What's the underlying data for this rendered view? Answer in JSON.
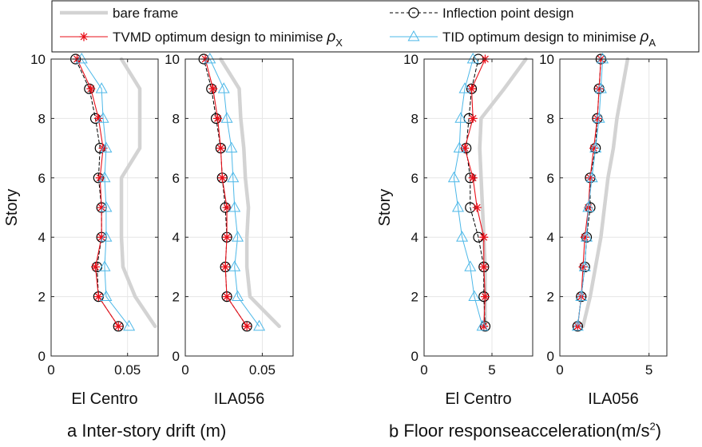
{
  "legend": {
    "items": [
      {
        "key": "bare",
        "label": "bare frame"
      },
      {
        "key": "inflection",
        "label": "Inflection point design"
      },
      {
        "key": "tvmd",
        "label": "TVMD optimum design to minimise ",
        "sym": "ρ",
        "sub": "X"
      },
      {
        "key": "tid",
        "label": "TID optimum design to minimise ",
        "sym": "ρ",
        "sub": "A"
      }
    ]
  },
  "colors": {
    "bare": "#d3d3d3",
    "inflection": "#000000",
    "tvmd": "#e8101a",
    "tid": "#4db8e8",
    "grid": "#e6e6e6",
    "axis": "#262626"
  },
  "captions": {
    "a_letter": "a",
    "a_text": "Inter-story drift (m)",
    "b_letter": "b",
    "b_text_pre": "Floor responseacceleration(m/s",
    "b_sup": "2",
    "b_text_post": ")"
  },
  "chart_data": [
    {
      "id": "drift-elcentro",
      "type": "line",
      "title": "",
      "xlabel": "El Centro",
      "ylabel": "Story",
      "xlim": [
        0,
        0.07
      ],
      "ylim": [
        0,
        10
      ],
      "xticks": [
        0,
        0.05
      ],
      "xtick_labels": [
        "0",
        "0.05"
      ],
      "yticks": [
        0,
        2,
        4,
        6,
        8,
        10
      ],
      "ytick_labels": [
        "0",
        "2",
        "4",
        "6",
        "8",
        "10"
      ],
      "y": [
        1,
        2,
        3,
        4,
        5,
        6,
        7,
        8,
        9,
        10
      ],
      "series": [
        {
          "name": "bare frame",
          "key": "bare",
          "values": [
            0.068,
            0.055,
            0.047,
            0.046,
            0.046,
            0.046,
            0.058,
            0.058,
            0.058,
            0.046
          ]
        },
        {
          "name": "Inflection point design",
          "key": "inflection",
          "values": [
            0.044,
            0.031,
            0.03,
            0.033,
            0.033,
            0.031,
            0.032,
            0.029,
            0.025,
            0.016
          ]
        },
        {
          "name": "TVMD optimum design to minimise ρX",
          "key": "tvmd",
          "values": [
            0.044,
            0.031,
            0.029,
            0.033,
            0.033,
            0.032,
            0.034,
            0.031,
            0.026,
            0.017
          ]
        },
        {
          "name": "TID optimum design to minimise ρA",
          "key": "tid",
          "values": [
            0.051,
            0.036,
            0.035,
            0.036,
            0.036,
            0.035,
            0.036,
            0.034,
            0.033,
            0.02
          ]
        }
      ]
    },
    {
      "id": "drift-ila056",
      "type": "line",
      "title": "",
      "xlabel": "ILA056",
      "ylabel": "",
      "xlim": [
        0,
        0.07
      ],
      "ylim": [
        0,
        10
      ],
      "xticks": [
        0,
        0.05
      ],
      "xtick_labels": [
        "0",
        "0.05"
      ],
      "yticks": [
        0,
        2,
        4,
        6,
        8,
        10
      ],
      "ytick_labels": [
        "0",
        "2",
        "4",
        "6",
        "8",
        "10"
      ],
      "y": [
        1,
        2,
        3,
        4,
        5,
        6,
        7,
        8,
        9,
        10
      ],
      "series": [
        {
          "name": "bare frame",
          "key": "bare",
          "values": [
            0.061,
            0.042,
            0.04,
            0.04,
            0.041,
            0.039,
            0.038,
            0.036,
            0.035,
            0.023
          ]
        },
        {
          "name": "Inflection point design",
          "key": "inflection",
          "values": [
            0.04,
            0.027,
            0.026,
            0.027,
            0.026,
            0.024,
            0.023,
            0.02,
            0.017,
            0.012
          ]
        },
        {
          "name": "TVMD optimum design to minimise ρX",
          "key": "tvmd",
          "values": [
            0.04,
            0.027,
            0.026,
            0.027,
            0.027,
            0.024,
            0.023,
            0.021,
            0.018,
            0.013
          ]
        },
        {
          "name": "TID optimum design to minimise ρA",
          "key": "tid",
          "values": [
            0.048,
            0.034,
            0.032,
            0.034,
            0.032,
            0.031,
            0.03,
            0.027,
            0.025,
            0.016
          ]
        }
      ]
    },
    {
      "id": "accel-elcentro",
      "type": "line",
      "title": "",
      "xlabel": "El Centro",
      "ylabel": "Story",
      "xlim": [
        0,
        8
      ],
      "ylim": [
        0,
        10
      ],
      "xticks": [
        0,
        5
      ],
      "xtick_labels": [
        "0",
        "5"
      ],
      "yticks": [
        0,
        2,
        4,
        6,
        8,
        10
      ],
      "ytick_labels": [
        "0",
        "2",
        "4",
        "6",
        "8",
        "10"
      ],
      "y": [
        1,
        2,
        3,
        4,
        5,
        6,
        7,
        8,
        9,
        10
      ],
      "series": [
        {
          "name": "bare frame",
          "key": "bare",
          "values": [
            4.5,
            4.5,
            4.5,
            4.4,
            4.3,
            4.2,
            4.1,
            4.2,
            5.9,
            7.5
          ]
        },
        {
          "name": "Inflection point design",
          "key": "inflection",
          "values": [
            4.5,
            4.4,
            4.4,
            4.0,
            3.4,
            3.4,
            3.1,
            3.3,
            3.5,
            4.0
          ]
        },
        {
          "name": "TVMD optimum design to minimise ρX",
          "key": "tvmd",
          "values": [
            4.4,
            4.5,
            4.4,
            4.4,
            3.9,
            3.6,
            3.0,
            3.6,
            3.5,
            4.5
          ]
        },
        {
          "name": "TID optimum design to minimise ρA",
          "key": "tid",
          "values": [
            4.3,
            3.7,
            3.4,
            2.8,
            2.5,
            2.2,
            2.6,
            2.7,
            3.0,
            3.6
          ]
        }
      ]
    },
    {
      "id": "accel-ila056",
      "type": "line",
      "title": "",
      "xlabel": "ILA056",
      "ylabel": "",
      "xlim": [
        0,
        6
      ],
      "ylim": [
        0,
        10
      ],
      "xticks": [
        0,
        5
      ],
      "xtick_labels": [
        "0",
        "5"
      ],
      "yticks": [
        0,
        2,
        4,
        6,
        8,
        10
      ],
      "ytick_labels": [
        "0",
        "2",
        "4",
        "6",
        "8",
        "10"
      ],
      "y": [
        1,
        2,
        3,
        4,
        5,
        6,
        7,
        8,
        9,
        10
      ],
      "series": [
        {
          "name": "bare frame",
          "key": "bare",
          "values": [
            1.3,
            1.7,
            2.0,
            2.3,
            2.5,
            2.7,
            3.0,
            3.2,
            3.5,
            3.8
          ]
        },
        {
          "name": "Inflection point design",
          "key": "inflection",
          "values": [
            1.0,
            1.2,
            1.4,
            1.5,
            1.7,
            1.7,
            2.0,
            2.1,
            2.2,
            2.3
          ]
        },
        {
          "name": "TVMD optimum design to minimise ρX",
          "key": "tvmd",
          "values": [
            1.0,
            1.2,
            1.3,
            1.4,
            1.6,
            1.7,
            1.9,
            2.1,
            2.2,
            2.3
          ]
        },
        {
          "name": "TID optimum design to minimise ρA",
          "key": "tid",
          "values": [
            1.0,
            1.2,
            1.4,
            1.5,
            1.6,
            1.8,
            2.0,
            2.2,
            2.3,
            2.4
          ]
        }
      ]
    }
  ]
}
